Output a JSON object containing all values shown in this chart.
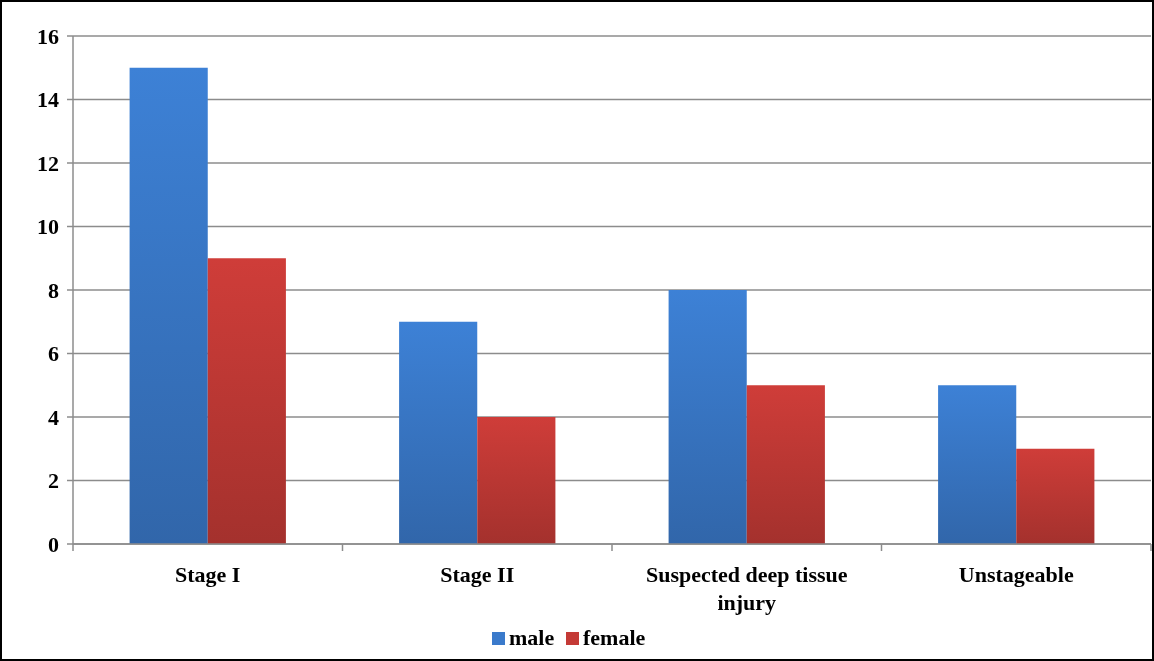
{
  "chart_data": {
    "type": "bar",
    "categories": [
      "Stage I",
      "Stage II",
      "Suspected deep tissue injury",
      "Unstageable"
    ],
    "series": [
      {
        "name": "male",
        "color": "#3a7acb",
        "values": [
          15,
          7,
          8,
          5
        ]
      },
      {
        "name": "female",
        "color": "#c43a36",
        "values": [
          9,
          4,
          5,
          3
        ]
      }
    ],
    "ylim": [
      0,
      16
    ],
    "yticks": [
      0,
      2,
      4,
      6,
      8,
      10,
      12,
      14,
      16
    ],
    "grid": "y",
    "legend": "bottom"
  }
}
